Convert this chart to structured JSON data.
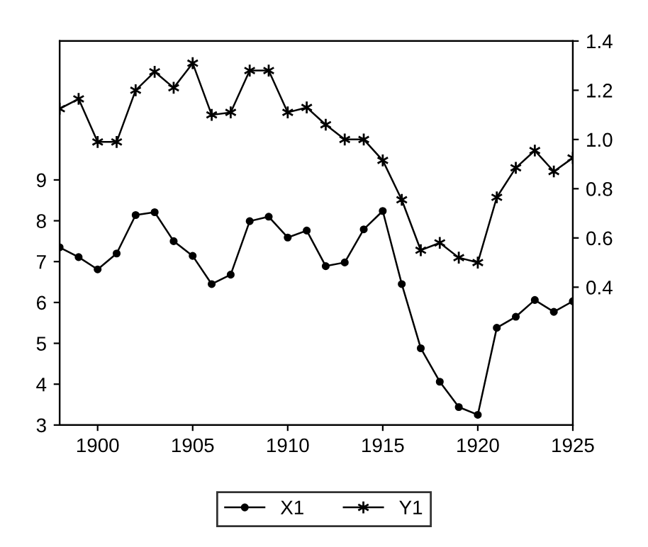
{
  "chart_data": {
    "type": "line",
    "x": [
      1898,
      1899,
      1900,
      1901,
      1902,
      1903,
      1904,
      1905,
      1906,
      1907,
      1908,
      1909,
      1910,
      1911,
      1912,
      1913,
      1914,
      1915,
      1916,
      1917,
      1918,
      1919,
      1920,
      1921,
      1922,
      1923,
      1924,
      1925
    ],
    "series": [
      {
        "name": "X1",
        "color": "#000000",
        "marker": "circle",
        "values": [
          7.35,
          7.11,
          6.81,
          7.2,
          8.14,
          8.21,
          7.5,
          7.14,
          6.45,
          6.68,
          7.99,
          8.1,
          7.59,
          7.76,
          6.89,
          6.98,
          7.79,
          8.24,
          6.45,
          4.88,
          4.06,
          3.44,
          3.25,
          5.38,
          5.65,
          6.06,
          5.77,
          6.03
        ]
      },
      {
        "name": "Y1",
        "color": "#000000",
        "marker": "cross",
        "axis": "y2",
        "values": [
          1.125,
          1.165,
          0.99,
          0.99,
          1.2,
          1.275,
          1.21,
          1.31,
          1.1,
          1.11,
          1.28,
          1.28,
          1.11,
          1.13,
          1.06,
          1.0,
          1.0,
          0.915,
          0.755,
          0.55,
          0.58,
          0.52,
          0.5,
          0.765,
          0.885,
          0.955,
          0.87,
          0.925
        ]
      }
    ],
    "xlim": [
      1898,
      1925
    ],
    "xticks": [
      1900,
      1905,
      1910,
      1915,
      1920,
      1925
    ],
    "ylim": [
      3,
      12.4
    ],
    "yticks": [
      3,
      4,
      5,
      6,
      7,
      8,
      9
    ],
    "y2lim": [
      -0.16,
      1.4
    ],
    "y2ticks": [
      {
        "value": 0.4,
        "label": "0.4"
      },
      {
        "value": 0.6,
        "label": "0.6"
      },
      {
        "value": 0.8,
        "label": "0.8"
      },
      {
        "value": 1.0,
        "label": "1.0"
      },
      {
        "value": 1.2,
        "label": "1.2"
      },
      {
        "value": 1.4,
        "label": "1.4"
      }
    ],
    "grid": false,
    "legend": "bottom",
    "line_style": "solid"
  }
}
